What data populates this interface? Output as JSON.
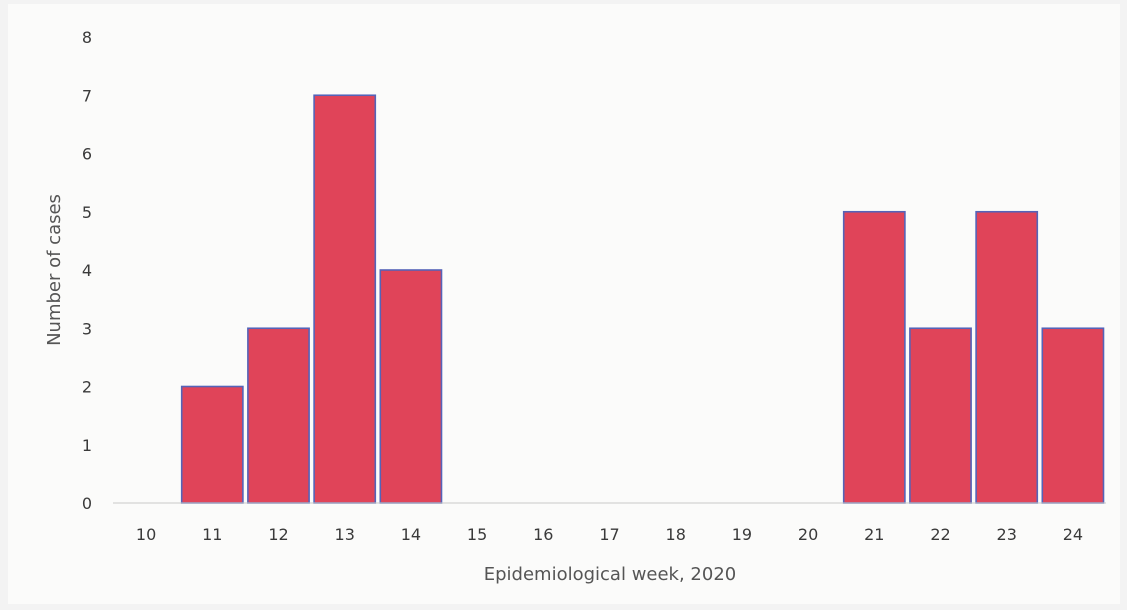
{
  "chart_data": {
    "type": "bar",
    "title": "",
    "xlabel": "Epidemiological week, 2020",
    "ylabel": "Number of cases",
    "categories": [
      "10",
      "11",
      "12",
      "13",
      "14",
      "15",
      "16",
      "17",
      "18",
      "19",
      "20",
      "21",
      "22",
      "23",
      "24"
    ],
    "values": [
      0,
      2,
      3,
      7,
      4,
      0,
      0,
      0,
      0,
      0,
      0,
      5,
      3,
      5,
      3
    ],
    "ylim": [
      0,
      8
    ],
    "yticks": [
      "0",
      "1",
      "2",
      "3",
      "4",
      "5",
      "6",
      "7",
      "8"
    ],
    "grid": false,
    "legend": "none",
    "bar_color": "#e04459",
    "bar_edge_color": "#5563b8"
  }
}
